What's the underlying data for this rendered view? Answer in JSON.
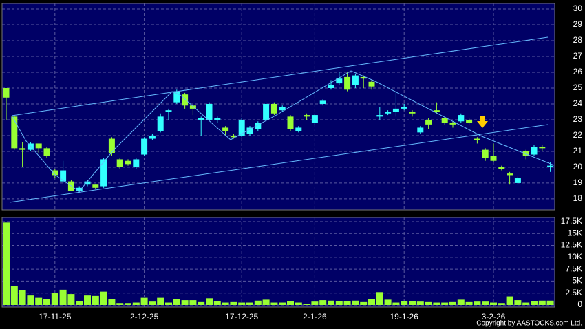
{
  "chart_data": [
    {
      "type": "candlestick",
      "categories": [
        null,
        null,
        null,
        null,
        null,
        null,
        "17-11-25",
        null,
        null,
        null,
        null,
        null,
        null,
        null,
        null,
        null,
        null,
        "2-12-25",
        null,
        null,
        null,
        null,
        null,
        null,
        null,
        null,
        null,
        null,
        null,
        "17-12-25",
        null,
        null,
        null,
        null,
        null,
        null,
        null,
        null,
        "2-1-26",
        null,
        null,
        null,
        null,
        null,
        null,
        null,
        null,
        null,
        null,
        "19-1-26",
        null,
        null,
        null,
        null,
        null,
        null,
        null,
        null,
        null,
        null,
        "3-2-26",
        null,
        null,
        null,
        null,
        null,
        null,
        null
      ],
      "series": [
        {
          "name": "open",
          "values": [
            25,
            23.2,
            21.2,
            21.1,
            21.5,
            21.2,
            19.8,
            19.1,
            19.1,
            18.5,
            18.9,
            18.9,
            18.8,
            21.8,
            20.5,
            20.4,
            20,
            20.8,
            21.8,
            22.3,
            23.5,
            24.1,
            24.6,
            23.9,
            23,
            23,
            23,
            22.5,
            22,
            22,
            22.1,
            22.4,
            23,
            24,
            23.6,
            23.2,
            22.3,
            23.3,
            22.8,
            24,
            25,
            25.3,
            25.7,
            25.2,
            25.7,
            25.4,
            23.2,
            23.4,
            23.5,
            23.7,
            23.5,
            22.2,
            23,
            23.6,
            23.1,
            22.8,
            22.9,
            23,
            21.8,
            21.1,
            20.7,
            20,
            19.6,
            19,
            21,
            20.8,
            21.3,
            20.1
          ]
        },
        {
          "name": "high",
          "values": [
            25,
            23.3,
            21.6,
            21.6,
            21.5,
            21.3,
            19.9,
            20.4,
            19.2,
            18.8,
            19.2,
            18.9,
            20.6,
            21.9,
            20.6,
            20.5,
            20.6,
            21.9,
            22.1,
            23.4,
            23.7,
            24.9,
            24.7,
            24,
            23.2,
            24.1,
            23.2,
            22.6,
            22.1,
            23.1,
            22.6,
            22.9,
            24.1,
            24.1,
            23.9,
            23.3,
            22.6,
            23.4,
            23.4,
            24.3,
            25.5,
            26,
            26,
            25.9,
            25.8,
            25.5,
            23.8,
            23.6,
            24.8,
            24,
            23.6,
            22.6,
            23.1,
            24.1,
            23.2,
            22.9,
            23.4,
            23.1,
            21.9,
            21.2,
            21.5,
            20.1,
            19.7,
            19.4,
            21.1,
            21.4,
            21.4,
            20.3
          ]
        },
        {
          "name": "low",
          "values": [
            23,
            21.1,
            20,
            21,
            20.9,
            20.6,
            19.3,
            19,
            18.5,
            18.4,
            18.8,
            18.6,
            18.7,
            20.7,
            19.9,
            20.1,
            19.9,
            20.7,
            21.7,
            22.2,
            23,
            24,
            23.7,
            23.3,
            22,
            22.9,
            22.8,
            22,
            21.8,
            21.9,
            22,
            22.3,
            22.9,
            23.3,
            23.5,
            22.3,
            22.2,
            23,
            22.7,
            23.9,
            24.9,
            25.2,
            24.8,
            25,
            25,
            24.9,
            23,
            23.3,
            23.2,
            23.6,
            23.2,
            22.1,
            22.4,
            23.4,
            22.7,
            22.5,
            22.8,
            22.7,
            21.5,
            20.4,
            20.3,
            19.8,
            18.9,
            18.9,
            20.5,
            20.7,
            21,
            19.7
          ]
        },
        {
          "name": "close",
          "values": [
            24.4,
            21.2,
            21.1,
            21.5,
            21.2,
            20.7,
            19.5,
            19.8,
            18.5,
            18.7,
            19.1,
            18.7,
            20.5,
            20.9,
            20,
            20.2,
            20.5,
            21.8,
            22,
            23.2,
            23.6,
            24.8,
            23.9,
            23.7,
            23.1,
            24,
            23.1,
            22.3,
            21.9,
            23,
            22.5,
            22.8,
            24,
            23.4,
            23.8,
            22.4,
            22.5,
            23.2,
            23.3,
            24.2,
            25.2,
            25.6,
            24.9,
            25.8,
            25.6,
            25.1,
            23.3,
            23.5,
            23.7,
            23.8,
            23.4,
            22.5,
            22.7,
            23.5,
            22.8,
            22.7,
            23.3,
            22.8,
            21.7,
            20.6,
            20.4,
            19.9,
            19.5,
            19.3,
            20.7,
            21.3,
            21.2,
            20.1
          ]
        }
      ],
      "up_color": "#33ffff",
      "down_color": "#99ff33",
      "ylim": [
        17.3,
        30.35
      ],
      "yticks": [
        18,
        19,
        20,
        21,
        22,
        23,
        24,
        25,
        26,
        27,
        28,
        29,
        30
      ],
      "grid": true
    },
    {
      "type": "bar",
      "color": "#99ff33",
      "values": [
        17300,
        4000,
        3100,
        2000,
        1500,
        1300,
        2500,
        3200,
        2300,
        800,
        2000,
        1900,
        2800,
        1300,
        400,
        400,
        500,
        1500,
        700,
        1500,
        500,
        1200,
        1000,
        1000,
        600,
        1400,
        800,
        500,
        600,
        500,
        500,
        900,
        1100,
        500,
        500,
        800,
        500,
        200,
        700,
        1000,
        900,
        800,
        800,
        900,
        600,
        1200,
        2700,
        1100,
        500,
        800,
        800,
        700,
        600,
        500,
        500,
        600,
        1100,
        600,
        700,
        700,
        500,
        400,
        1800,
        1000,
        500,
        800,
        900,
        900
      ],
      "ylim": [
        0,
        18000
      ],
      "yticks": [
        {
          "value": 0,
          "label": "0"
        },
        {
          "value": 2500,
          "label": "2.5K"
        },
        {
          "value": 5000,
          "label": "5K"
        },
        {
          "value": 7500,
          "label": "7.5K"
        },
        {
          "value": 10000,
          "label": "10K"
        },
        {
          "value": 12500,
          "label": "12.5K"
        },
        {
          "value": 15000,
          "label": "15K"
        },
        {
          "value": 17500,
          "label": "17.5K"
        }
      ],
      "grid": true,
      "footer": "Copyright by AASTOCKS.com Ltd."
    }
  ]
}
